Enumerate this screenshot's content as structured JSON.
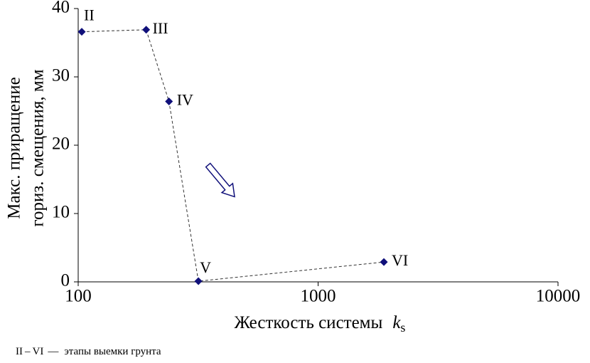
{
  "chart_data": {
    "type": "line",
    "x_label": {
      "text": "Жесткость системы",
      "symbol": "k",
      "subscript": "s"
    },
    "y_label": [
      "Макс. приращение",
      "гориз. смещения, мм"
    ],
    "note": [
      "II",
      "VI",
      "—",
      "этапы выемки грунта"
    ],
    "series": [
      {
        "color": "#10107a",
        "x": [
          103.5,
          192,
          239,
          317,
          1880
        ],
        "values": [
          36.6,
          36.9,
          26.4,
          0.1,
          2.9
        ],
        "point_labels": [
          "II",
          "III",
          "IV",
          "V",
          "VI"
        ]
      }
    ],
    "xscale": "log",
    "xlim": [
      100,
      10000
    ],
    "xticks": [
      100,
      1000,
      10000
    ],
    "ylim": [
      0,
      40
    ],
    "yticks": [
      0,
      10,
      20,
      30,
      40
    ]
  }
}
